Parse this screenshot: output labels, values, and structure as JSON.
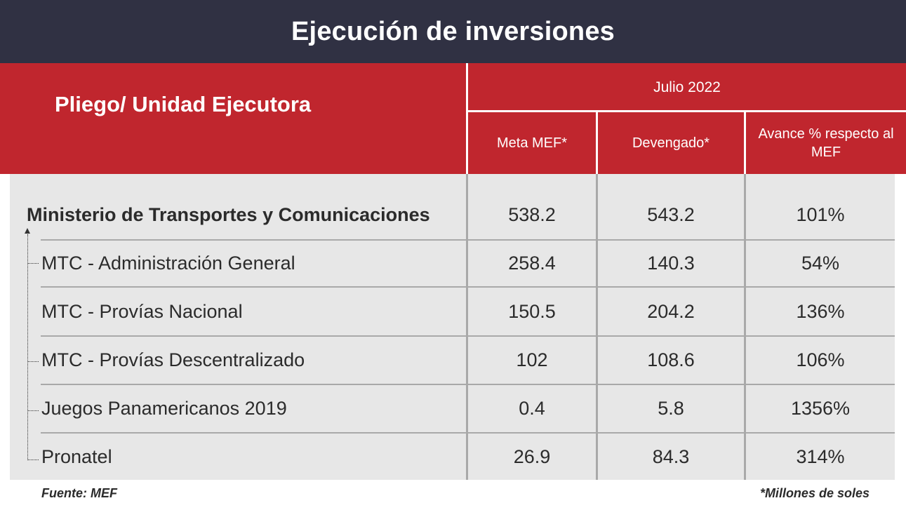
{
  "title": "Ejecución de inversiones",
  "header": {
    "entity": "Pliego/ Unidad Ejecutora",
    "period": "Julio 2022",
    "col_meta": "Meta MEF*",
    "col_devengado": "Devengado*",
    "col_avance": "Avance % respecto al MEF"
  },
  "chart_data": {
    "type": "table",
    "title": "Ejecución de inversiones",
    "columns": [
      "Pliego/ Unidad Ejecutora",
      "Meta MEF*",
      "Devengado*",
      "Avance % respecto al MEF"
    ],
    "rows": [
      {
        "name": "Ministerio de Transportes y Comunicaciones",
        "meta": "538.2",
        "devengado": "543.2",
        "avance": "101%"
      },
      {
        "name": "MTC - Administración General",
        "meta": "258.4",
        "devengado": "140.3",
        "avance": "54%"
      },
      {
        "name": "MTC - Provías Nacional",
        "meta": "150.5",
        "devengado": "204.2",
        "avance": "136%"
      },
      {
        "name": "MTC - Provías Descentralizado",
        "meta": "102",
        "devengado": "108.6",
        "avance": "106%"
      },
      {
        "name": "Juegos Panamericanos 2019",
        "meta": "0.4",
        "devengado": "5.8",
        "avance": "1356%"
      },
      {
        "name": "Pronatel",
        "meta": "26.9",
        "devengado": "84.3",
        "avance": "314%"
      }
    ]
  },
  "footer": {
    "source": "Fuente: MEF",
    "note": "*Millones de soles"
  },
  "colors": {
    "title_bg": "#303143",
    "header_bg": "#c0262e",
    "body_bg": "#e7e7e7"
  }
}
